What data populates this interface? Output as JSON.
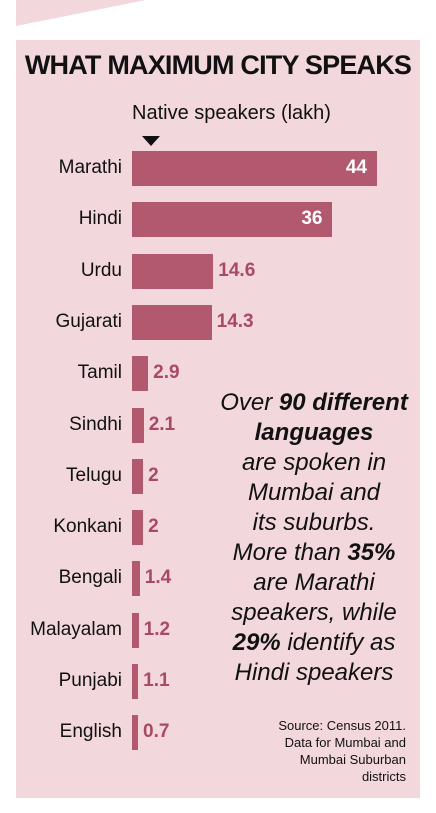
{
  "chart_data": {
    "type": "bar",
    "orientation": "horizontal",
    "title": "WHAT MAXIMUM CITY SPEAKS",
    "subtitle": "Native speakers (lakh)",
    "categories": [
      "Marathi",
      "Hindi",
      "Urdu",
      "Gujarati",
      "Tamil",
      "Sindhi",
      "Telugu",
      "Konkani",
      "Bengali",
      "Malayalam",
      "Punjabi",
      "English"
    ],
    "values": [
      44,
      36,
      14.6,
      14.3,
      2.9,
      2.1,
      2,
      2,
      1.4,
      1.2,
      1.1,
      0.7
    ],
    "value_labels": [
      "44",
      "36",
      "14.6",
      "14.3",
      "2.9",
      "2.1",
      "2",
      "2",
      "1.4",
      "1.2",
      "1.1",
      "0.7"
    ],
    "xlim": [
      0,
      44
    ],
    "grid": false,
    "bar_color": "#b3596f",
    "annotation": {
      "lines": [
        [
          {
            "t": "Over ",
            "b": false
          },
          {
            "t": "90 different",
            "b": true
          }
        ],
        [
          {
            "t": "languages",
            "b": true
          }
        ],
        [
          {
            "t": "are spoken in",
            "b": false
          }
        ],
        [
          {
            "t": "Mumbai and",
            "b": false
          }
        ],
        [
          {
            "t": "its suburbs.",
            "b": false
          }
        ],
        [
          {
            "t": "More than ",
            "b": false
          },
          {
            "t": "35%",
            "b": true
          }
        ],
        [
          {
            "t": "are Marathi",
            "b": false
          }
        ],
        [
          {
            "t": "speakers, while",
            "b": false
          }
        ],
        [
          {
            "t": "29%",
            "b": true
          },
          {
            "t": " identify as",
            "b": false
          }
        ],
        [
          {
            "t": "Hindi speakers",
            "b": false
          }
        ]
      ]
    },
    "source": [
      "Source: Census 2011.",
      "Data for Mumbai and",
      "Mumbai Suburban",
      "districts"
    ]
  },
  "colors": {
    "background": "#f2d7dd",
    "bar": "#b3596f",
    "value_label_outside": "#a84a62",
    "value_label_inside": "#ffffff",
    "text": "#111111"
  }
}
